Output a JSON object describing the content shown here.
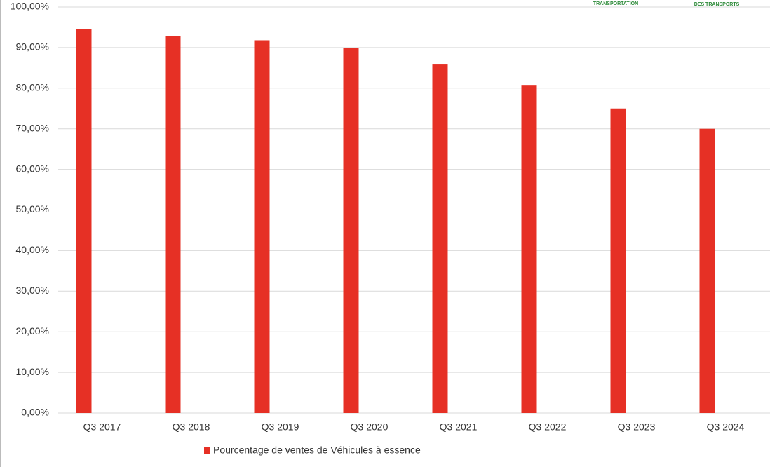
{
  "chart_data": {
    "type": "bar",
    "categories": [
      "Q3 2017",
      "Q3 2018",
      "Q3 2019",
      "Q3 2020",
      "Q3 2021",
      "Q3 2022",
      "Q3 2023",
      "Q3 2024"
    ],
    "series": [
      {
        "name": "Pourcentage de ventes de Véhicules à essence",
        "color": "#e63025",
        "values": [
          94.5,
          92.8,
          91.8,
          89.9,
          86.0,
          80.8,
          75.0,
          70.0
        ]
      }
    ],
    "ylim": [
      0,
      100
    ],
    "yticks": [
      {
        "value": 0,
        "label": "0,00%"
      },
      {
        "value": 10,
        "label": "10,00%"
      },
      {
        "value": 20,
        "label": "20,00%"
      },
      {
        "value": 30,
        "label": "30,00%"
      },
      {
        "value": 40,
        "label": "40,00%"
      },
      {
        "value": 50,
        "label": "50,00%"
      },
      {
        "value": 60,
        "label": "60,00%"
      },
      {
        "value": 70,
        "label": "70,00%"
      },
      {
        "value": 80,
        "label": "80,00%"
      },
      {
        "value": 90,
        "label": "90,00%"
      },
      {
        "value": 100,
        "label": "100,00%"
      }
    ],
    "grid": true,
    "legend": "bottom"
  },
  "logo_texts": [
    "TRANSPORTATION",
    "DES TRANSPORTS"
  ]
}
